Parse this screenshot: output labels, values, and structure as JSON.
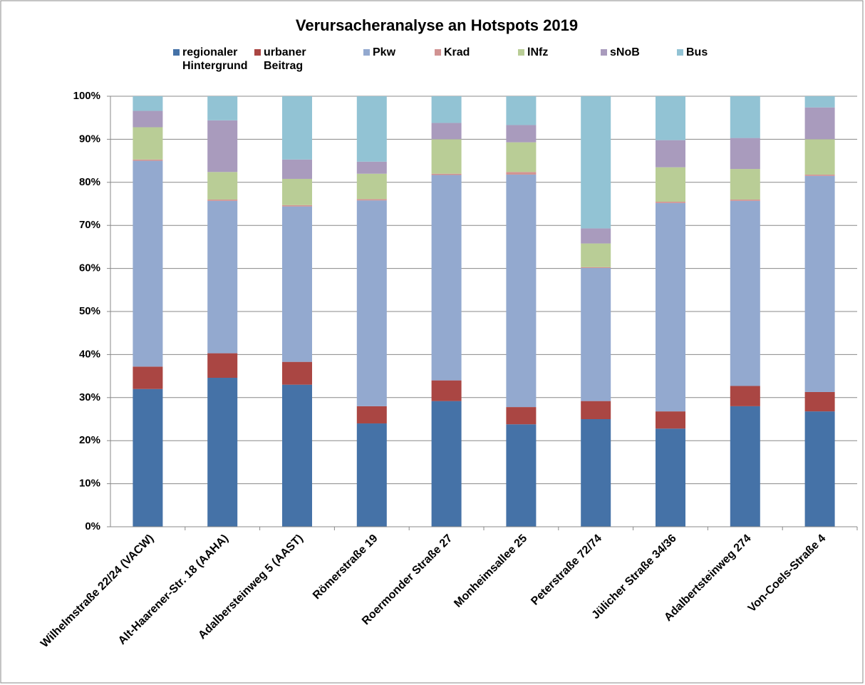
{
  "chart_data": {
    "type": "stacked_bar",
    "title": "Verursacheranalyse an Hotspots 2019",
    "categories": [
      "Wilhelmstraße 22/24 (VACW)",
      "Alt-Haarener-Str. 18 (AAHA)",
      "Adalbersteinweg 5 (AAST)",
      "Römerstraße 19",
      "Roermonder Straße 27",
      "Monheimsallee 25",
      "Peterstraße 72/74",
      "Jülicher Straße 34/36",
      "Adalbertsteinweg 274",
      "Von-Coels-Straße 4"
    ],
    "series": [
      {
        "name": "regionaler Hintergrund",
        "color": "#4572a7",
        "values": [
          32,
          34.6,
          33,
          24,
          29.2,
          23.8,
          25,
          22.8,
          28,
          26.8
        ]
      },
      {
        "name": "urbaner Beitrag",
        "color": "#aa4643",
        "values": [
          5.2,
          5.7,
          5.3,
          4,
          4.8,
          4,
          4.2,
          4,
          4.7,
          4.5
        ]
      },
      {
        "name": "Pkw",
        "color": "#93a9cf",
        "values": [
          47.8,
          35.4,
          36.1,
          47.8,
          47.7,
          54,
          30.9,
          48.4,
          43,
          50.2
        ]
      },
      {
        "name": "Krad",
        "color": "#d19392",
        "values": [
          0.3,
          0.3,
          0.3,
          0.3,
          0.3,
          0.6,
          0.2,
          0.3,
          0.3,
          0.3
        ]
      },
      {
        "name": "lNfz",
        "color": "#b9cd96",
        "values": [
          7.5,
          6.4,
          6.1,
          5.9,
          8,
          6.9,
          5.5,
          8,
          7.1,
          8.2
        ]
      },
      {
        "name": "sNoB",
        "color": "#a99bbd",
        "values": [
          3.8,
          12,
          4.5,
          2.8,
          3.8,
          4,
          3.5,
          6.3,
          7.2,
          7.4
        ]
      },
      {
        "name": "Bus",
        "color": "#92c3d4",
        "values": [
          3.4,
          5.6,
          14.7,
          15.2,
          6.2,
          6.7,
          30.7,
          10.2,
          9.7,
          2.6
        ]
      }
    ],
    "ylim": [
      0,
      100
    ],
    "yticks": [
      {
        "value": 0,
        "label": "0%"
      },
      {
        "value": 10,
        "label": "10%"
      },
      {
        "value": 20,
        "label": "20%"
      },
      {
        "value": 30,
        "label": "30%"
      },
      {
        "value": 40,
        "label": "40%"
      },
      {
        "value": 50,
        "label": "50%"
      },
      {
        "value": 60,
        "label": "60%"
      },
      {
        "value": 70,
        "label": "70%"
      },
      {
        "value": 80,
        "label": "80%"
      },
      {
        "value": 90,
        "label": "90%"
      },
      {
        "value": 100,
        "label": "100%"
      }
    ],
    "grid": true
  }
}
